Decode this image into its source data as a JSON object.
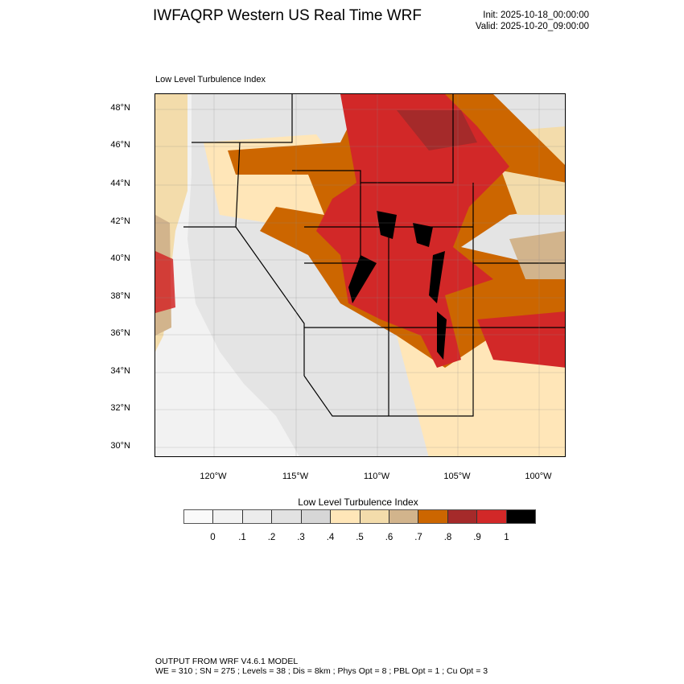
{
  "header": {
    "title": "IWFAQRP Western US Real Time WRF",
    "init": "Init: 2025-10-18_00:00:00",
    "valid": "Valid: 2025-10-20_09:00:00"
  },
  "map": {
    "subtitle": "Low Level Turbulence Index",
    "lat_labels": [
      "48°N",
      "46°N",
      "44°N",
      "42°N",
      "40°N",
      "38°N",
      "36°N",
      "34°N",
      "32°N",
      "30°N"
    ],
    "lon_labels": [
      "120°W",
      "115°W",
      "110°W",
      "105°W",
      "100°W"
    ]
  },
  "colorbar": {
    "title": "Low Level Turbulence Index",
    "colors": [
      "#fafafa",
      "#f2f2f2",
      "#ececec",
      "#e2e2e2",
      "#d6d6d6",
      "#ffe6b8",
      "#f3dcab",
      "#d2b48c",
      "#cc6600",
      "#a52a2a",
      "#d22828",
      "#000000"
    ],
    "labels": [
      "0",
      ".1",
      ".2",
      ".3",
      ".4",
      ".5",
      ".6",
      ".7",
      ".8",
      ".9",
      "1"
    ]
  },
  "footer": {
    "line1": "OUTPUT FROM WRF V4.6.1 MODEL",
    "line2": "WE = 310 ; SN = 275 ; Levels = 38 ; Dis = 8km ; Phys Opt = 8 ; PBL Opt = 1 ; Cu Opt = 3"
  }
}
